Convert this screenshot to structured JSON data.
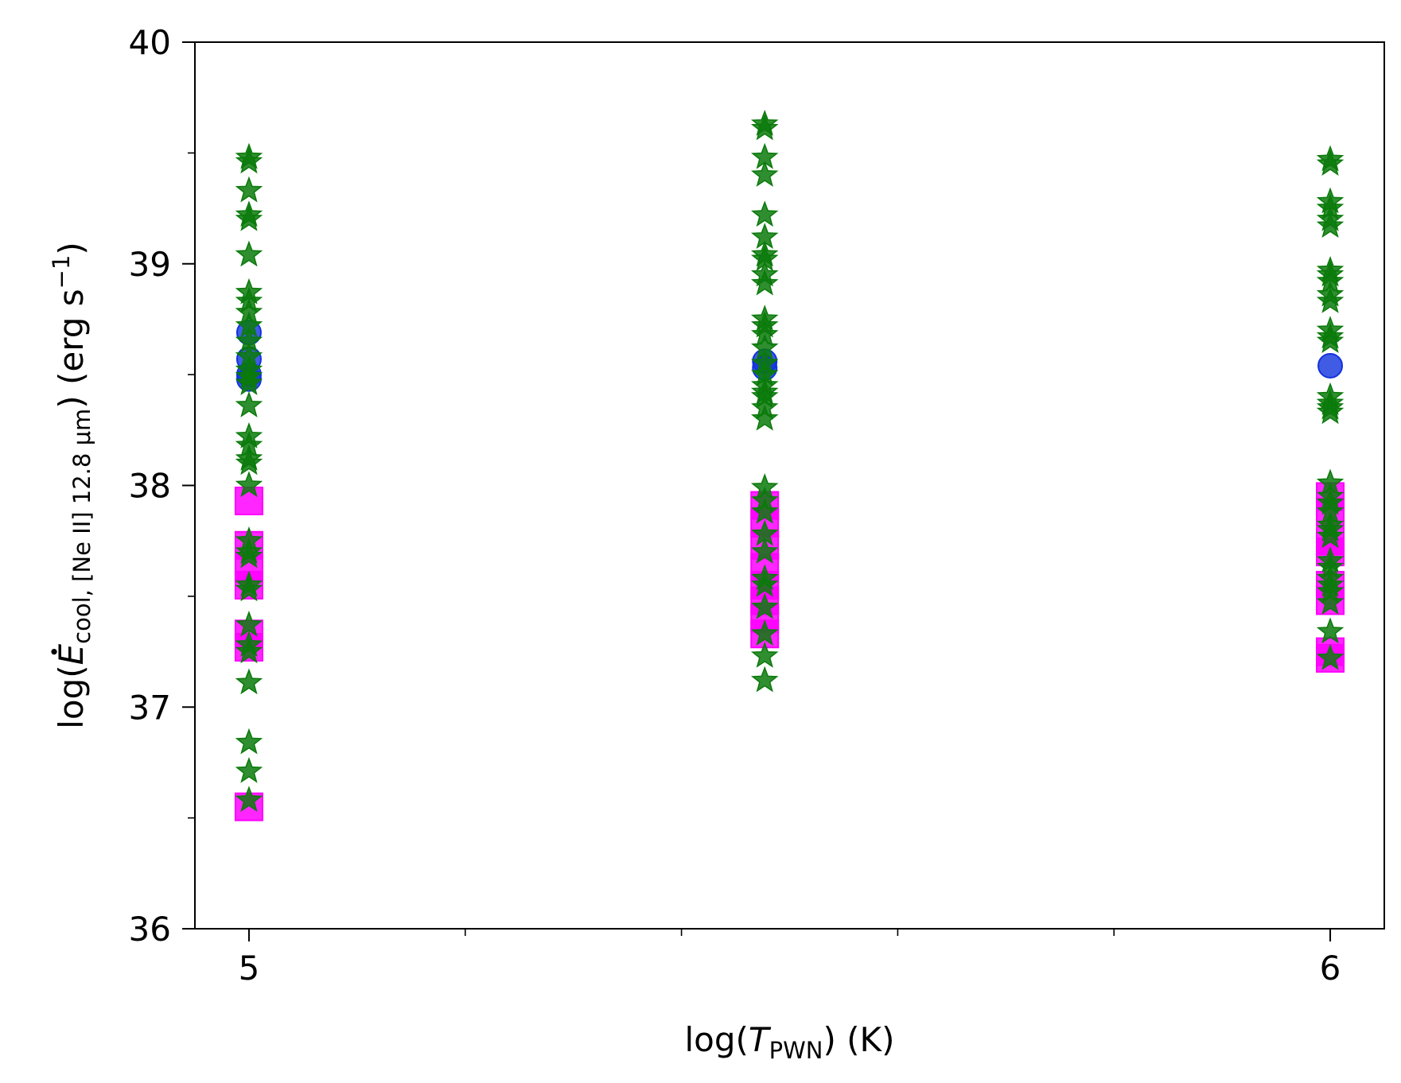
{
  "chart_data": {
    "type": "scatter",
    "title": "",
    "xlabel": {
      "prefix": "log(",
      "symbol": "T",
      "subscript": "PWN",
      "suffix": ") (K)"
    },
    "ylabel": {
      "prefix": "log(",
      "symbol": "E",
      "subscript": "cool, [Ne II] 12.8 μm",
      "suffix": ") (erg s",
      "superscript": "−1",
      "end": ")"
    },
    "xlim": [
      4.95,
      6.05
    ],
    "ylim": [
      36,
      40
    ],
    "x_ticks": [
      {
        "value": 5,
        "label": "5"
      },
      {
        "value": 6,
        "label": "6"
      }
    ],
    "x_minor_ticks": [
      5.2,
      5.4,
      5.6,
      5.8
    ],
    "y_ticks": [
      {
        "value": 36,
        "label": "36"
      },
      {
        "value": 37,
        "label": "37"
      },
      {
        "value": 38,
        "label": "38"
      },
      {
        "value": 39,
        "label": "39"
      },
      {
        "value": 40,
        "label": "40"
      }
    ],
    "y_minor_ticks": [
      36.5,
      37.5,
      38.5,
      39.5
    ],
    "grid": false,
    "legend": "none",
    "series": [
      {
        "marker": "square",
        "color": "#ff00ff",
        "points": [
          [
            5,
            37.93
          ],
          [
            5,
            37.73
          ],
          [
            5,
            37.63
          ],
          [
            5,
            37.55
          ],
          [
            5,
            37.33
          ],
          [
            5,
            37.27
          ],
          [
            5,
            36.55
          ],
          [
            5.477,
            37.91
          ],
          [
            5.477,
            37.83
          ],
          [
            5.477,
            37.73
          ],
          [
            5.477,
            37.63
          ],
          [
            5.477,
            37.55
          ],
          [
            5.477,
            37.48
          ],
          [
            5.477,
            37.4
          ],
          [
            5.477,
            37.33
          ],
          [
            6,
            37.95
          ],
          [
            6,
            37.88
          ],
          [
            6,
            37.75
          ],
          [
            6,
            37.7
          ],
          [
            6,
            37.55
          ],
          [
            6,
            37.48
          ],
          [
            6,
            37.25
          ],
          [
            6,
            37.22
          ]
        ]
      },
      {
        "marker": "circle",
        "color": "#1133dd",
        "points": [
          [
            5,
            38.69
          ],
          [
            5,
            38.57
          ],
          [
            5,
            38.5
          ],
          [
            5,
            38.48
          ],
          [
            5.477,
            38.56
          ],
          [
            5.477,
            38.53
          ],
          [
            6,
            38.54
          ]
        ]
      },
      {
        "marker": "star",
        "color": "#0a7a0a",
        "points": [
          [
            5,
            39.48
          ],
          [
            5,
            39.46
          ],
          [
            5,
            39.33
          ],
          [
            5,
            39.22
          ],
          [
            5,
            39.2
          ],
          [
            5,
            39.04
          ],
          [
            5,
            38.87
          ],
          [
            5,
            38.83
          ],
          [
            5,
            38.78
          ],
          [
            5,
            38.72
          ],
          [
            5,
            38.65
          ],
          [
            5,
            38.58
          ],
          [
            5,
            38.52
          ],
          [
            5,
            38.49
          ],
          [
            5,
            38.46
          ],
          [
            5,
            38.36
          ],
          [
            5,
            38.22
          ],
          [
            5,
            38.18
          ],
          [
            5,
            38.12
          ],
          [
            5,
            38.1
          ],
          [
            5,
            38.0
          ],
          [
            5,
            37.75
          ],
          [
            5,
            37.7
          ],
          [
            5,
            37.68
          ],
          [
            5,
            37.55
          ],
          [
            5,
            37.53
          ],
          [
            5,
            37.37
          ],
          [
            5,
            37.28
          ],
          [
            5,
            37.25
          ],
          [
            5,
            37.11
          ],
          [
            5,
            36.84
          ],
          [
            5,
            36.71
          ],
          [
            5,
            36.58
          ],
          [
            5.477,
            39.63
          ],
          [
            5.477,
            39.61
          ],
          [
            5.477,
            39.48
          ],
          [
            5.477,
            39.4
          ],
          [
            5.477,
            39.22
          ],
          [
            5.477,
            39.12
          ],
          [
            5.477,
            39.04
          ],
          [
            5.477,
            39.02
          ],
          [
            5.477,
            38.95
          ],
          [
            5.477,
            38.91
          ],
          [
            5.477,
            38.75
          ],
          [
            5.477,
            38.72
          ],
          [
            5.477,
            38.68
          ],
          [
            5.477,
            38.62
          ],
          [
            5.477,
            38.55
          ],
          [
            5.477,
            38.5
          ],
          [
            5.477,
            38.45
          ],
          [
            5.477,
            38.42
          ],
          [
            5.477,
            38.4
          ],
          [
            5.477,
            38.35
          ],
          [
            5.477,
            38.3
          ],
          [
            5.477,
            37.99
          ],
          [
            5.477,
            37.93
          ],
          [
            5.477,
            37.88
          ],
          [
            5.477,
            37.78
          ],
          [
            5.477,
            37.7
          ],
          [
            5.477,
            37.58
          ],
          [
            5.477,
            37.55
          ],
          [
            5.477,
            37.45
          ],
          [
            5.477,
            37.33
          ],
          [
            5.477,
            37.23
          ],
          [
            5.477,
            37.12
          ],
          [
            6,
            39.47
          ],
          [
            6,
            39.45
          ],
          [
            6,
            39.28
          ],
          [
            6,
            39.25
          ],
          [
            6,
            39.2
          ],
          [
            6,
            39.17
          ],
          [
            6,
            38.97
          ],
          [
            6,
            38.95
          ],
          [
            6,
            38.92
          ],
          [
            6,
            38.86
          ],
          [
            6,
            38.83
          ],
          [
            6,
            38.7
          ],
          [
            6,
            38.67
          ],
          [
            6,
            38.65
          ],
          [
            6,
            38.4
          ],
          [
            6,
            38.37
          ],
          [
            6,
            38.35
          ],
          [
            6,
            38.33
          ],
          [
            6,
            38.01
          ],
          [
            6,
            37.95
          ],
          [
            6,
            37.92
          ],
          [
            6,
            37.88
          ],
          [
            6,
            37.82
          ],
          [
            6,
            37.8
          ],
          [
            6,
            37.77
          ],
          [
            6,
            37.66
          ],
          [
            6,
            37.63
          ],
          [
            6,
            37.58
          ],
          [
            6,
            37.55
          ],
          [
            6,
            37.52
          ],
          [
            6,
            37.47
          ],
          [
            6,
            37.34
          ],
          [
            6,
            37.22
          ]
        ]
      }
    ]
  }
}
